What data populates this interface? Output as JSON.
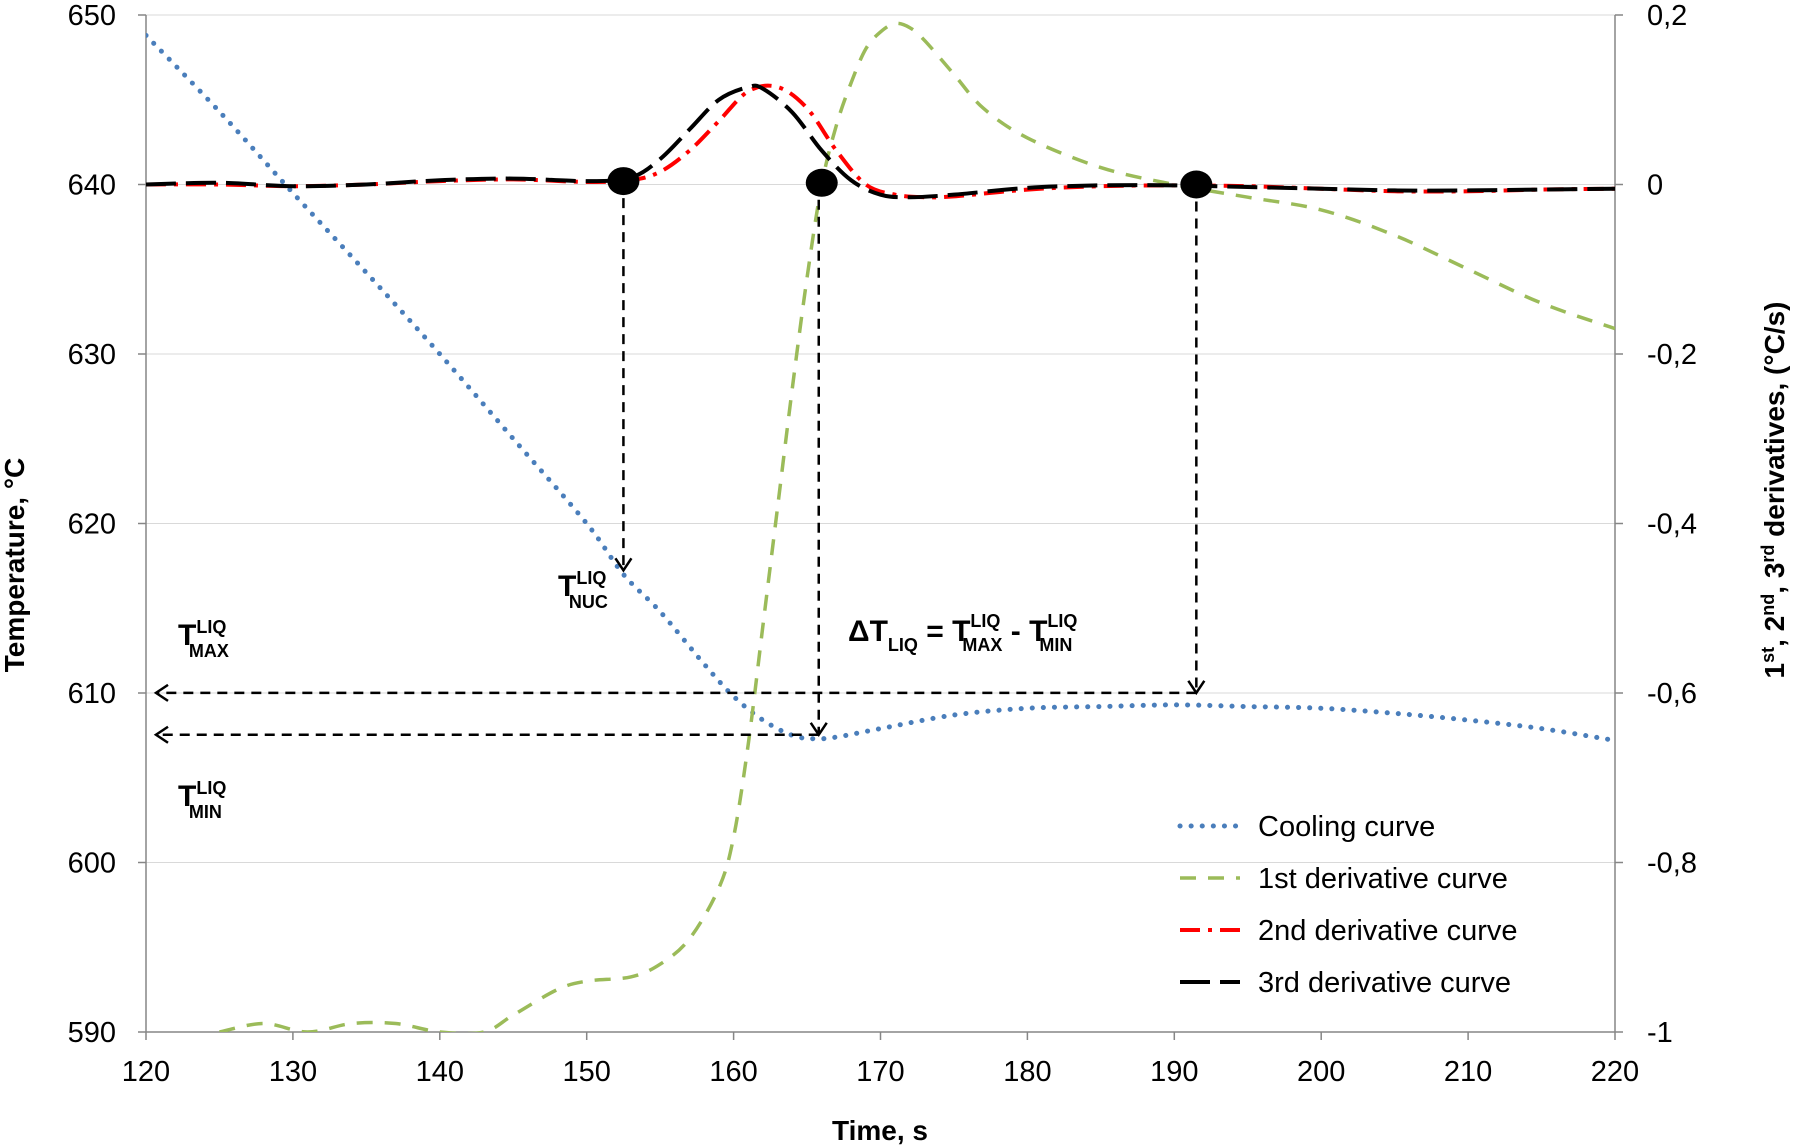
{
  "chart_data": {
    "type": "line",
    "title": "",
    "xlabel": "Time, s",
    "ylabel": "Temperature, °C",
    "y2label": "1st, 2nd, 3rd derivatives, (°C/s)",
    "y2label_parts": [
      {
        "text": "1",
        "sup": false
      },
      {
        "text": "st",
        "sup": true
      },
      {
        "text": ", 2",
        "sup": false
      },
      {
        "text": "nd",
        "sup": true
      },
      {
        "text": ", 3",
        "sup": false
      },
      {
        "text": "rd",
        "sup": true
      },
      {
        "text": " derivatives, (°C/s)",
        "sup": false
      }
    ],
    "xlim": [
      120,
      220
    ],
    "ylim": [
      590,
      650
    ],
    "y2lim": [
      -1,
      0.2
    ],
    "grid": "horizontal",
    "x_ticks": [
      "120",
      "130",
      "140",
      "150",
      "160",
      "170",
      "180",
      "190",
      "200",
      "210",
      "220"
    ],
    "x_tick_values": [
      120,
      130,
      140,
      150,
      160,
      170,
      180,
      190,
      200,
      210,
      220
    ],
    "y_ticks": [
      "590",
      "600",
      "610",
      "620",
      "630",
      "640",
      "650"
    ],
    "y_tick_values": [
      590,
      600,
      610,
      620,
      630,
      640,
      650
    ],
    "y2_ticks": [
      "-1",
      "-0,8",
      "-0,6",
      "-0,4",
      "-0,2",
      "0",
      "0,2"
    ],
    "y2_tick_values": [
      -1,
      -0.8,
      -0.6,
      -0.4,
      -0.2,
      0,
      0.2
    ],
    "legend_position": "bottom-right",
    "series": [
      {
        "name": "Cooling curve",
        "axis": "left",
        "color": "#4a7ebb",
        "style": "dotted",
        "x": [
          120,
          125,
          130,
          135,
          140,
          145,
          150,
          152.5,
          155,
          158,
          160,
          162,
          164,
          165.5,
          167,
          170,
          175,
          180,
          185,
          190,
          195,
          200,
          205,
          210,
          215,
          220
        ],
        "y": [
          648.8,
          644.3,
          639.5,
          634.8,
          630.0,
          625.0,
          620.0,
          617.0,
          614.8,
          611.7,
          609.8,
          608.4,
          607.5,
          607.3,
          607.4,
          607.9,
          608.7,
          609.1,
          609.2,
          609.3,
          609.2,
          609.1,
          608.8,
          608.4,
          607.9,
          607.2
        ]
      },
      {
        "name": "1st derivative curve",
        "axis": "right",
        "color": "#9bbb59",
        "style": "dashed",
        "x": [
          125,
          128,
          131,
          134,
          137,
          140,
          143,
          145,
          148,
          150,
          153,
          155,
          157,
          159,
          160,
          161,
          162,
          163,
          164,
          165,
          166,
          167,
          168,
          169,
          170,
          171,
          172,
          173,
          175,
          177,
          180,
          185,
          190,
          195,
          200,
          205,
          210,
          215,
          220
        ],
        "y": [
          -1.0,
          -0.99,
          -1.0,
          -0.99,
          -0.99,
          -1.0,
          -1.0,
          -0.98,
          -0.95,
          -0.94,
          -0.935,
          -0.92,
          -0.89,
          -0.83,
          -0.77,
          -0.66,
          -0.52,
          -0.38,
          -0.24,
          -0.11,
          0.0,
          0.07,
          0.12,
          0.16,
          0.18,
          0.19,
          0.185,
          0.17,
          0.13,
          0.09,
          0.055,
          0.02,
          0.0,
          -0.015,
          -0.03,
          -0.06,
          -0.1,
          -0.14,
          -0.17
        ]
      },
      {
        "name": "2nd derivative curve",
        "axis": "right",
        "color": "#ff0000",
        "style": "dash-dot",
        "x": [
          120,
          125,
          130,
          135,
          140,
          145,
          150,
          153,
          155,
          157,
          159,
          161,
          163,
          165,
          167,
          169,
          171,
          173,
          175,
          180,
          185,
          190,
          195,
          200,
          205,
          210,
          215,
          220
        ],
        "y": [
          0.0,
          0.0,
          -0.002,
          0.0,
          0.004,
          0.006,
          0.003,
          0.005,
          0.015,
          0.04,
          0.075,
          0.11,
          0.115,
          0.09,
          0.04,
          0.0,
          -0.012,
          -0.015,
          -0.014,
          -0.006,
          -0.002,
          -0.001,
          -0.002,
          -0.005,
          -0.008,
          -0.008,
          -0.006,
          -0.005
        ]
      },
      {
        "name": "3rd derivative curve",
        "axis": "right",
        "color": "#000000",
        "style": "long-dash",
        "x": [
          120,
          125,
          130,
          135,
          140,
          145,
          150,
          153,
          155,
          157,
          159,
          161,
          162,
          164,
          166,
          168,
          170,
          172,
          175,
          180,
          185,
          190,
          195,
          200,
          205,
          210,
          215,
          220
        ],
        "y": [
          0.0,
          0.002,
          -0.002,
          0.0,
          0.005,
          0.007,
          0.004,
          0.008,
          0.03,
          0.065,
          0.1,
          0.115,
          0.113,
          0.085,
          0.04,
          0.005,
          -0.012,
          -0.015,
          -0.012,
          -0.004,
          -0.001,
          -0.001,
          -0.003,
          -0.005,
          -0.007,
          -0.007,
          -0.006,
          -0.005
        ]
      }
    ],
    "markers": [
      {
        "x": 152.5,
        "y2": 0.004
      },
      {
        "x": 166,
        "y2": 0.002
      },
      {
        "x": 191.5,
        "y2": 0.0
      }
    ],
    "annotations": {
      "t_nuc": {
        "main": "T",
        "sup": "LIQ",
        "sub": "NUC",
        "x": 152.5,
        "y": 617.0
      },
      "t_max": {
        "main": "T",
        "sup": "LIQ",
        "sub": "MAX",
        "y": 609.3
      },
      "t_min": {
        "main": "T",
        "sup": "LIQ",
        "sub": "MIN",
        "y": 607.3
      },
      "delta": {
        "parts": [
          {
            "text": "ΔT",
            "style": "main"
          },
          {
            "text": "LIQ",
            "style": "sub"
          },
          {
            "text": " = T",
            "style": "main"
          },
          {
            "text": "LIQ",
            "style": "sup"
          },
          {
            "text": "MAX",
            "style": "sub"
          },
          {
            "text": " - T",
            "style": "main"
          },
          {
            "text": "LIQ",
            "style": "sup"
          },
          {
            "text": "MIN",
            "style": "sub"
          }
        ]
      }
    }
  }
}
